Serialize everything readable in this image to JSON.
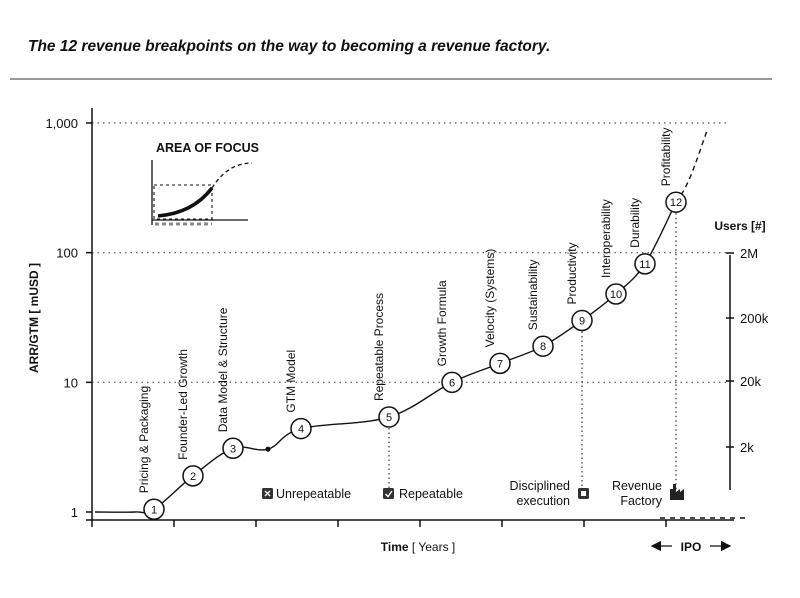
{
  "title": "The 12 revenue breakpoints on the way to becoming a revenue factory.",
  "chart_data": {
    "type": "line",
    "ylabel": "ARR/GTM [ mUSD ]",
    "xlabel_bold": "Time",
    "xlabel_unit": "[ Years ]",
    "y_scale": "log",
    "ylim": [
      1,
      1000
    ],
    "y_ticks": [
      "1",
      "10",
      "100",
      "1,000"
    ],
    "y2_label": "Users [#]",
    "y2_ticks": [
      "2M",
      "200k",
      "20k",
      "2k"
    ],
    "x_tick_count": 8,
    "ipo_label": "IPO",
    "inset_title": "AREA OF FOCUS",
    "milestones": [
      {
        "num": "1",
        "label": "Pricing & Packaging",
        "arr": 1.05
      },
      {
        "num": "2",
        "label": "Founder-Led Growth",
        "arr": 1.9
      },
      {
        "num": "3",
        "label": "Data Model & Structure",
        "arr": 3.1
      },
      {
        "num": "4",
        "label": "GTM Model",
        "arr": 4.4
      },
      {
        "num": "5",
        "label": "Repeatable Process",
        "arr": 5.4
      },
      {
        "num": "6",
        "label": "Growth Formula",
        "arr": 10
      },
      {
        "num": "7",
        "label": "Velocity (Systems)",
        "arr": 14
      },
      {
        "num": "8",
        "label": "Sustainability",
        "arr": 19
      },
      {
        "num": "9",
        "label": "Productivity",
        "arr": 30
      },
      {
        "num": "10",
        "label": "Interoperability",
        "arr": 48
      },
      {
        "num": "11",
        "label": "Durability",
        "arr": 82
      },
      {
        "num": "12",
        "label": "Profitability",
        "arr": 245
      }
    ],
    "legend": [
      {
        "label": "Unrepeatable",
        "icon": "x-box-icon"
      },
      {
        "label": "Repeatable",
        "icon": "check-box-icon"
      },
      {
        "label": "Disciplined execution",
        "icon": "square-box-icon"
      },
      {
        "label": "Revenue Factory",
        "icon": "factory-icon"
      }
    ],
    "grid": "dotted"
  }
}
